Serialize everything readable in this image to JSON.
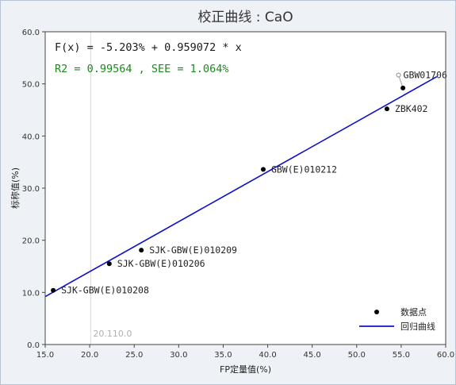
{
  "chart_data": {
    "type": "scatter",
    "title": "校正曲线 : CaO",
    "xlabel": "FP定量值(%)",
    "ylabel": "标称值(%)",
    "xlim": [
      15.0,
      60.0
    ],
    "ylim": [
      0.0,
      60.0
    ],
    "xticks": [
      "15.0",
      "20.0",
      "25.0",
      "30.0",
      "35.0",
      "40.0",
      "45.0",
      "50.0",
      "55.0",
      "60.0"
    ],
    "yticks": [
      "0.0",
      "10.0",
      "20.0",
      "30.0",
      "40.0",
      "50.0",
      "60.0"
    ],
    "equation": "F(x) = -5.203% + 0.959072 * x",
    "stats": "R2 = 0.99564 , SEE = 1.064%",
    "regression": {
      "intercept": -5.203,
      "slope": 0.959072
    },
    "points": [
      {
        "label": "SJK-GBW(E)010208",
        "x": 15.9,
        "y": 10.4,
        "excluded": false
      },
      {
        "label": "SJK-GBW(E)010206",
        "x": 22.2,
        "y": 15.5,
        "excluded": false
      },
      {
        "label": "SJK-GBW(E)010209",
        "x": 25.8,
        "y": 18.1,
        "excluded": false
      },
      {
        "label": "GBW(E)010212",
        "x": 39.5,
        "y": 33.6,
        "excluded": false
      },
      {
        "label": "ZBK402",
        "x": 53.4,
        "y": 45.2,
        "excluded": false
      },
      {
        "label": "GBW01706",
        "x": 55.2,
        "y": 49.2,
        "excluded": false,
        "marker_x": 54.7,
        "marker_y": 51.7
      }
    ],
    "legend": [
      {
        "label": "数据点",
        "kind": "marker"
      },
      {
        "label": "回归曲线",
        "kind": "line"
      }
    ],
    "cursor_readout": "20.110.0",
    "cursor_x": 20.11,
    "colors": {
      "line": "#1010c8",
      "eq": "#1a1a1a",
      "stats": "#1c8a1c",
      "point": "#000000"
    }
  }
}
